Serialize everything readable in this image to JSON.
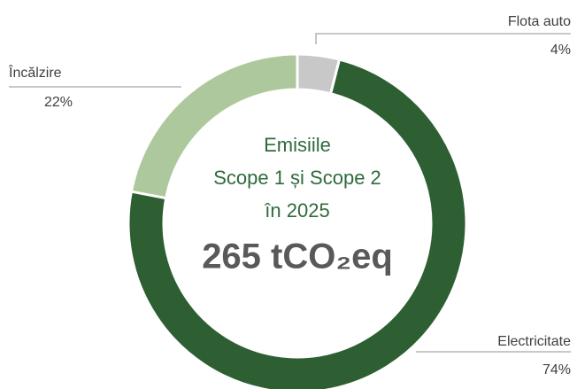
{
  "chart_data": {
    "type": "donut",
    "title": [
      "Emisiile",
      "Scope 1 și Scope 2",
      "în 2025"
    ],
    "center_value": "265 tCO₂eq",
    "categories": [
      "Flota auto",
      "Electricitate",
      "Încălzire"
    ],
    "values": [
      4,
      74,
      22
    ],
    "value_labels": [
      "4%",
      "74%",
      "22%"
    ],
    "colors": [
      "#c8c8c8",
      "#2d5f33",
      "#adc89c"
    ]
  }
}
